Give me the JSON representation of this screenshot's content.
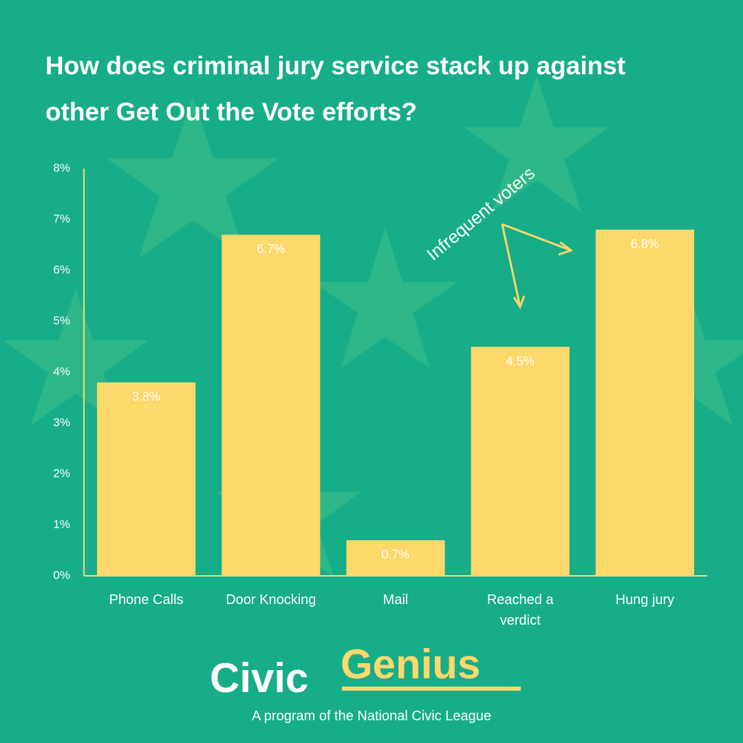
{
  "chart_data": {
    "type": "bar",
    "title": "How does criminal jury service stack up against other Get Out the Vote efforts?",
    "categories": [
      "Phone Calls",
      "Door Knocking",
      "Mail",
      "Reached a verdict",
      "Hung jury"
    ],
    "values": [
      3.8,
      6.7,
      0.7,
      4.5,
      6.8
    ],
    "value_labels": [
      "3.8%",
      "6.7%",
      "0.7%",
      "4.5%",
      "6.8%"
    ],
    "color": "#fdd86a",
    "ylim": [
      0,
      8
    ],
    "yticks": [
      {
        "value": 0,
        "label": "0%"
      },
      {
        "value": 1,
        "label": "1%"
      },
      {
        "value": 2,
        "label": "2%"
      },
      {
        "value": 3,
        "label": "3%"
      },
      {
        "value": 4,
        "label": "4%"
      },
      {
        "value": 5,
        "label": "5%"
      },
      {
        "value": 6,
        "label": "6%"
      },
      {
        "value": 7,
        "label": "7%"
      },
      {
        "value": 8,
        "label": "8%"
      }
    ],
    "annotation": "Infrequent voters"
  },
  "logo": {
    "part1": "Civic",
    "part2": "Genius",
    "tagline": "A program of the National Civic League"
  }
}
